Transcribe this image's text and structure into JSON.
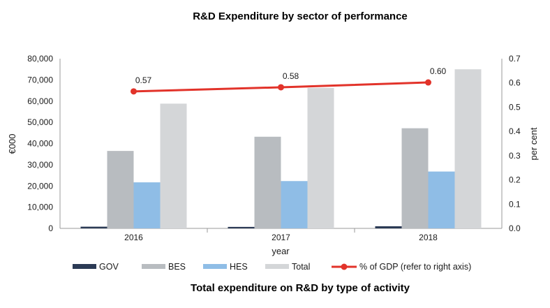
{
  "chart_data": {
    "type": "bar",
    "title": "R&D Expenditure by sector of performance",
    "subtitle": "Total expenditure on R&D by type of activity",
    "xlabel": "year",
    "ylabel": "€000",
    "y2label": "per cent",
    "categories": [
      "2016",
      "2017",
      "2018"
    ],
    "ylim": [
      0,
      80000
    ],
    "y2lim": [
      0,
      0.7
    ],
    "yticks": [
      "0",
      "10,000",
      "20,000",
      "30,000",
      "40,000",
      "50,000",
      "60,000",
      "70,000",
      "80,000"
    ],
    "y2ticks": [
      "0.0",
      "0.1",
      "0.2",
      "0.3",
      "0.4",
      "0.5",
      "0.6",
      "0.7"
    ],
    "series": [
      {
        "name": "GOV",
        "color": "#2b3a55",
        "values": [
          800,
          700,
          1000
        ]
      },
      {
        "name": "BES",
        "color": "#b8bcc0",
        "values": [
          36500,
          43200,
          47200
        ]
      },
      {
        "name": "HES",
        "color": "#8fbde6",
        "values": [
          21700,
          22300,
          26800
        ]
      },
      {
        "name": "Total",
        "color": "#d4d6d8",
        "values": [
          58800,
          66200,
          75000
        ]
      }
    ],
    "line": {
      "name": "% of GDP (refer to right axis)",
      "color": "#e2332a",
      "values": [
        0.565,
        0.582,
        0.602
      ],
      "labels": [
        "0.57",
        "0.58",
        "0.60"
      ]
    },
    "legend_position": "bottom",
    "grid": false
  }
}
